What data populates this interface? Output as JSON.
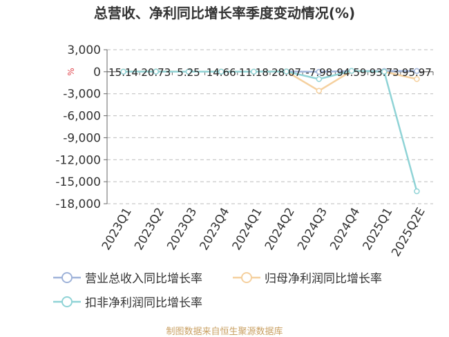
{
  "chart_data": {
    "type": "line",
    "title": "总营收、净利同比增长率季度变动情况(%)",
    "ylabel": "%",
    "ylim": [
      -18000,
      3000
    ],
    "yticks": [
      3000,
      0,
      -3000,
      -6000,
      -9000,
      -12000,
      -15000,
      -18000
    ],
    "ytick_labels": [
      "3,000",
      "0",
      "-3,000",
      "-6,000",
      "-9,000",
      "-12,000",
      "-15,000",
      "-18,000"
    ],
    "grid": true,
    "legend_position": "bottom",
    "categories": [
      "2023Q1",
      "2023Q2",
      "2023Q3",
      "2023Q4",
      "2024Q1",
      "2024Q2",
      "2024Q3",
      "2024Q4",
      "2025Q1",
      "2025Q2E"
    ],
    "series": [
      {
        "name": "营业总收入同比增长率",
        "color": "#9fb3d9",
        "values": [
          15.14,
          20.73,
          5.25,
          14.66,
          11.18,
          28.07,
          -7.98,
          94.59,
          93.73,
          95.97
        ]
      },
      {
        "name": "归母净利润同比增长率",
        "color": "#f5d09e",
        "values": [
          20,
          30,
          10,
          20,
          15,
          40,
          -2600,
          100,
          0,
          -1000
        ]
      },
      {
        "name": "扣非净利润同比增长率",
        "color": "#8fd3d6",
        "values": [
          10,
          20,
          5,
          15,
          10,
          30,
          -1000,
          120,
          0,
          -16300
        ]
      }
    ],
    "data_labels": [
      "15.14",
      "20.73",
      "5.25",
      "14.66",
      "11.18",
      "28.07",
      "-7.98",
      "94.59",
      "93.73",
      "95.97"
    ]
  },
  "footer": {
    "source": "制图数据来自恒生聚源数据库"
  },
  "colors": {
    "title": "#333333",
    "axis_text": "#333333",
    "grid": "#bbbbbb",
    "ylabel": "#e0434b",
    "footer": "#c9a063"
  }
}
